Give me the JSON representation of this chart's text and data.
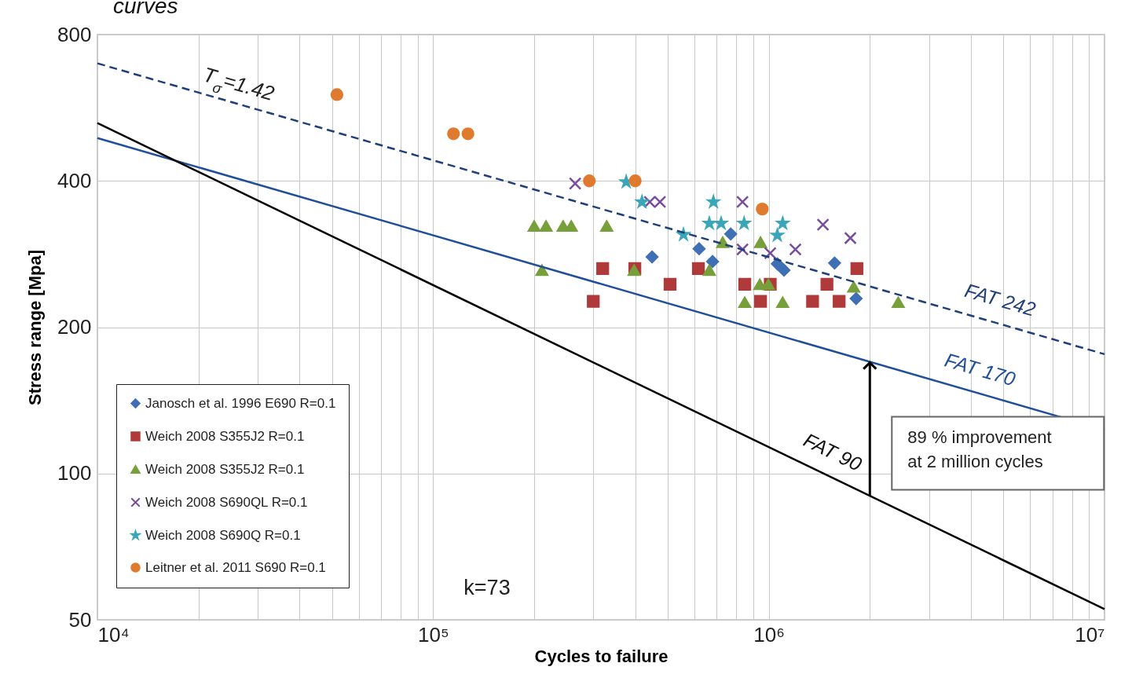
{
  "chart_data": {
    "type": "scatter",
    "title": "curves",
    "xlabel": "Cycles to failure",
    "ylabel": "Stress range [Mpa]",
    "log": "xy",
    "grid": true,
    "legend": "bottom left",
    "xlim": [
      10000,
      10000000
    ],
    "ylim": [
      50,
      800
    ],
    "xticks": [
      {
        "value": 10000,
        "label": "10⁴"
      },
      {
        "value": 20000,
        "label": null
      },
      {
        "value": 30000,
        "label": null
      },
      {
        "value": 40000,
        "label": null
      },
      {
        "value": 50000,
        "label": null
      },
      {
        "value": 60000,
        "label": null
      },
      {
        "value": 70000,
        "label": null
      },
      {
        "value": 80000,
        "label": null
      },
      {
        "value": 90000,
        "label": null
      },
      {
        "value": 100000,
        "label": "10⁵"
      },
      {
        "value": 200000,
        "label": null
      },
      {
        "value": 300000,
        "label": null
      },
      {
        "value": 400000,
        "label": null
      },
      {
        "value": 500000,
        "label": null
      },
      {
        "value": 600000,
        "label": null
      },
      {
        "value": 700000,
        "label": null
      },
      {
        "value": 800000,
        "label": null
      },
      {
        "value": 900000,
        "label": null
      },
      {
        "value": 1000000,
        "label": "10⁶"
      },
      {
        "value": 2000000,
        "label": null
      },
      {
        "value": 3000000,
        "label": null
      },
      {
        "value": 4000000,
        "label": null
      },
      {
        "value": 5000000,
        "label": null
      },
      {
        "value": 6000000,
        "label": null
      },
      {
        "value": 7000000,
        "label": null
      },
      {
        "value": 8000000,
        "label": null
      },
      {
        "value": 9000000,
        "label": null
      },
      {
        "value": 10000000,
        "label": "10⁷"
      }
    ],
    "yticks": [
      50,
      100,
      200,
      400,
      800
    ],
    "series": [
      {
        "name": "Janosch et al. 1996 E690 R=0.1",
        "type": "scatter",
        "marker": "diamond",
        "color": "#3f6fb4",
        "x": [
          449000,
          620000,
          680000,
          770000,
          1060000,
          1110000,
          1570000,
          1820000
        ],
        "values": [
          279,
          290,
          273,
          311,
          270,
          262,
          271,
          229
        ]
      },
      {
        "name": "Weich 2008 S355J2 R=0.1",
        "type": "scatter",
        "marker": "square",
        "color": "#b03a3a",
        "x": [
          300000,
          320000,
          399000,
          508000,
          617000,
          848000,
          945000,
          1010000,
          1350000,
          1490000,
          1620000,
          1830000
        ],
        "values": [
          226,
          264,
          264,
          245,
          264,
          245,
          226,
          245,
          226,
          245,
          226,
          264
        ]
      },
      {
        "name": "Weich 2008 S355J2 R=0.1",
        "type": "scatter",
        "marker": "triangle",
        "color": "#77a03a",
        "x": [
          200000,
          217000,
          244000,
          258000,
          329000,
          211000,
          397000,
          665000,
          729000,
          945000,
          940000,
          997000,
          848000,
          1100000,
          1790000,
          2430000
        ],
        "values": [
          323,
          323,
          323,
          323,
          323,
          262,
          262,
          262,
          299,
          299,
          245,
          245,
          225,
          225,
          242,
          225
        ]
      },
      {
        "name": "Weich 2008 S690QL R=0.1",
        "type": "scatter",
        "marker": "cross",
        "color": "#7a4c9e",
        "x": [
          265000,
          442000,
          474000,
          835000,
          1450000,
          1750000,
          1200000,
          835000,
          1010000
        ],
        "values": [
          395,
          362,
          362,
          362,
          325,
          305,
          289,
          289,
          284
        ]
      },
      {
        "name": "Weich 2008 S690Q R=0.1",
        "type": "scatter",
        "marker": "star",
        "color": "#3aa6b9",
        "x": [
          376000,
          419000,
          684000,
          665000,
          721000,
          844000,
          1100000,
          1060000,
          557000
        ],
        "values": [
          398,
          362,
          362,
          327,
          327,
          327,
          327,
          309,
          310
        ]
      },
      {
        "name": "Leitner et al. 2011 S690 R=0.1",
        "type": "scatter",
        "marker": "circle",
        "color": "#e07a2e",
        "x": [
          51700,
          115000,
          127000,
          292000,
          400000,
          956000
        ],
        "values": [
          602,
          500,
          500,
          400,
          400,
          350
        ]
      },
      {
        "name": "FAT 242",
        "type": "line",
        "line_style": "dashed",
        "color": "#1f3f7a",
        "x": [
          10000,
          10000000
        ],
        "values": [
          698,
          176
        ]
      },
      {
        "name": "FAT 170",
        "type": "line",
        "line_style": "solid",
        "color": "#1f4e9a",
        "x": [
          10000,
          10000000
        ],
        "values": [
          490,
          123
        ]
      },
      {
        "name": "FAT 90",
        "type": "line",
        "line_style": "solid",
        "color": "#000000",
        "x": [
          10000,
          10000000
        ],
        "values": [
          526,
          52.6
        ]
      }
    ],
    "annotations": [
      {
        "text": "T$_{σ}$=1.42",
        "x": 21000,
        "y": 601
      },
      "89 % improvement\nat 2 million cycles",
      "k=73"
    ]
  }
}
